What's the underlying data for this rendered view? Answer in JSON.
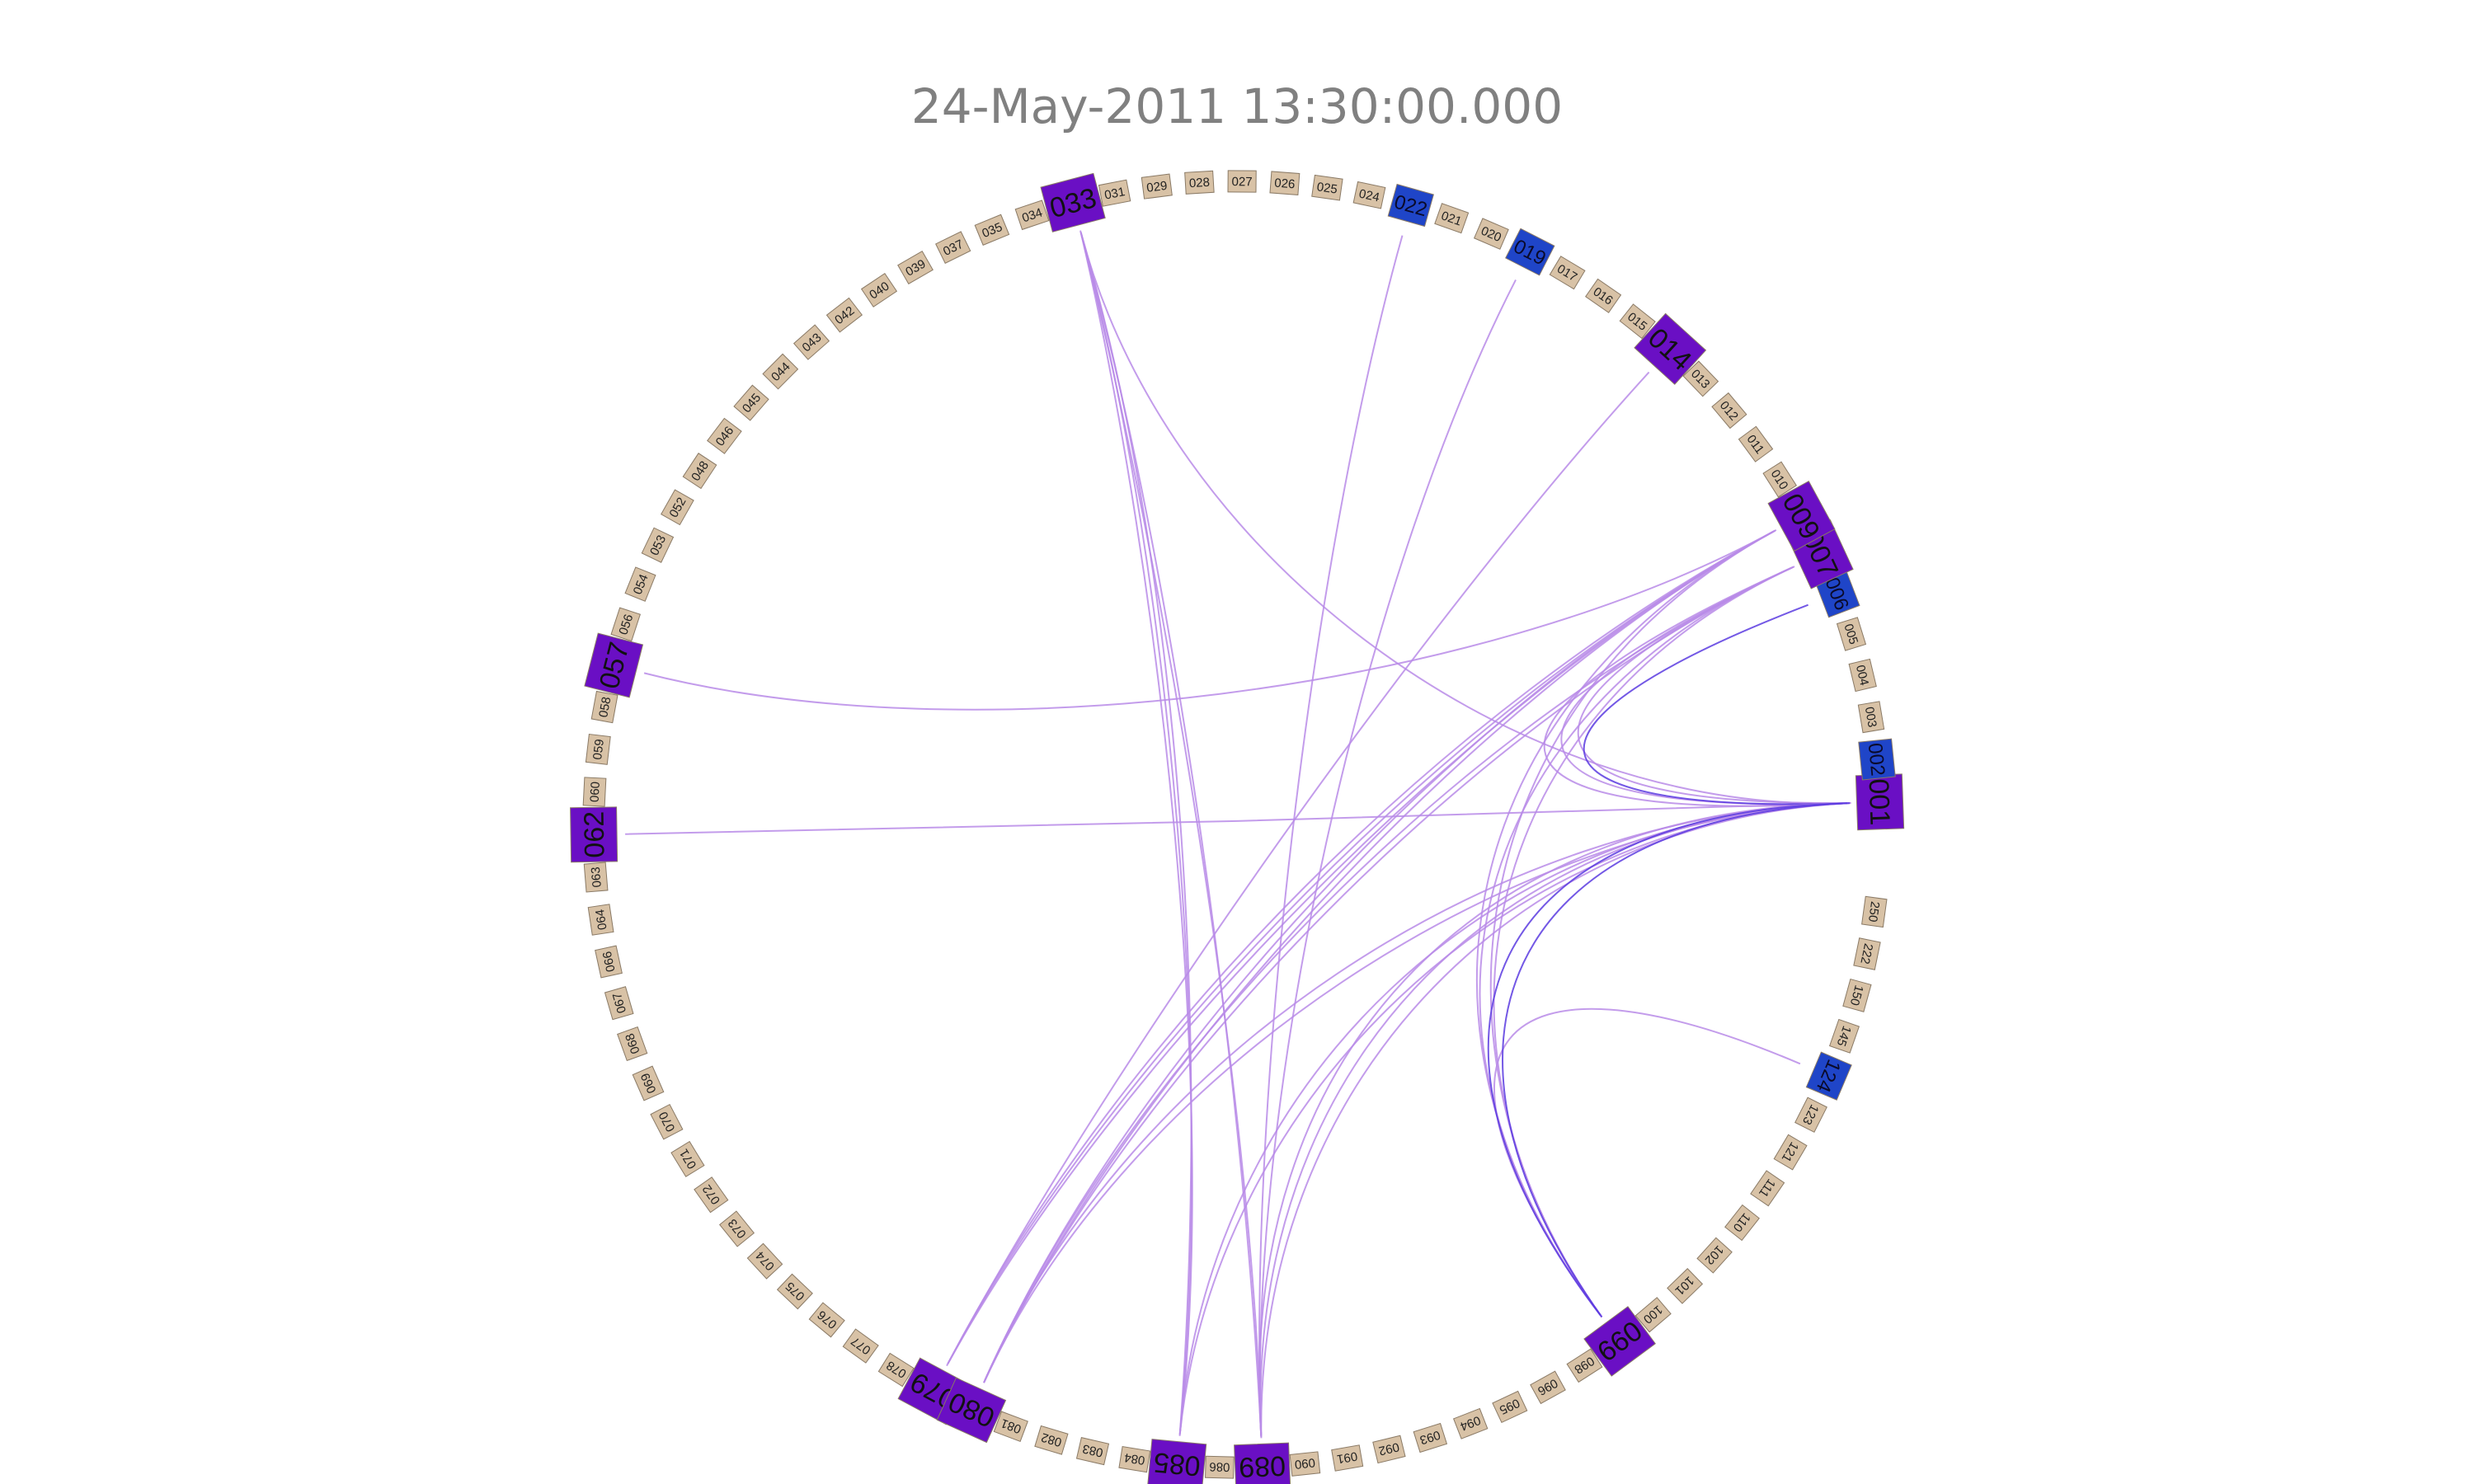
{
  "title": "24-May-2011 13:30:00.000",
  "colors": {
    "small_node_fill": "#d8c2a6",
    "blue_node_fill": "#1f45c8",
    "purple_node_fill": "#6a0fc4",
    "violet_node_fill": "#7d1ac0",
    "edge_light": "#b98be8",
    "edge_dark": "#5b3be0"
  },
  "nodes": [
    {
      "label": "001",
      "kind": "big"
    },
    {
      "label": "002",
      "kind": "blue"
    },
    {
      "label": "003",
      "kind": "small"
    },
    {
      "label": "004",
      "kind": "small"
    },
    {
      "label": "005",
      "kind": "small"
    },
    {
      "label": "006",
      "kind": "blue"
    },
    {
      "label": "007",
      "kind": "big"
    },
    {
      "label": "009",
      "kind": "big"
    },
    {
      "label": "010",
      "kind": "small"
    },
    {
      "label": "011",
      "kind": "small"
    },
    {
      "label": "012",
      "kind": "small"
    },
    {
      "label": "013",
      "kind": "small"
    },
    {
      "label": "014",
      "kind": "big"
    },
    {
      "label": "015",
      "kind": "small"
    },
    {
      "label": "016",
      "kind": "small"
    },
    {
      "label": "017",
      "kind": "small"
    },
    {
      "label": "019",
      "kind": "blue"
    },
    {
      "label": "020",
      "kind": "small"
    },
    {
      "label": "021",
      "kind": "small"
    },
    {
      "label": "022",
      "kind": "blue"
    },
    {
      "label": "024",
      "kind": "small"
    },
    {
      "label": "025",
      "kind": "small"
    },
    {
      "label": "026",
      "kind": "small"
    },
    {
      "label": "027",
      "kind": "small"
    },
    {
      "label": "028",
      "kind": "small"
    },
    {
      "label": "029",
      "kind": "small"
    },
    {
      "label": "031",
      "kind": "small"
    },
    {
      "label": "033",
      "kind": "big"
    },
    {
      "label": "034",
      "kind": "small"
    },
    {
      "label": "035",
      "kind": "small"
    },
    {
      "label": "037",
      "kind": "small"
    },
    {
      "label": "039",
      "kind": "small"
    },
    {
      "label": "040",
      "kind": "small"
    },
    {
      "label": "042",
      "kind": "small"
    },
    {
      "label": "043",
      "kind": "small"
    },
    {
      "label": "044",
      "kind": "small"
    },
    {
      "label": "045",
      "kind": "small"
    },
    {
      "label": "046",
      "kind": "small"
    },
    {
      "label": "048",
      "kind": "small"
    },
    {
      "label": "052",
      "kind": "small"
    },
    {
      "label": "053",
      "kind": "small"
    },
    {
      "label": "054",
      "kind": "small"
    },
    {
      "label": "056",
      "kind": "small"
    },
    {
      "label": "057",
      "kind": "big"
    },
    {
      "label": "058",
      "kind": "small"
    },
    {
      "label": "059",
      "kind": "small"
    },
    {
      "label": "060",
      "kind": "small"
    },
    {
      "label": "062",
      "kind": "big"
    },
    {
      "label": "063",
      "kind": "small"
    },
    {
      "label": "064",
      "kind": "small"
    },
    {
      "label": "066",
      "kind": "small"
    },
    {
      "label": "067",
      "kind": "small"
    },
    {
      "label": "068",
      "kind": "small"
    },
    {
      "label": "069",
      "kind": "small"
    },
    {
      "label": "070",
      "kind": "small"
    },
    {
      "label": "071",
      "kind": "small"
    },
    {
      "label": "072",
      "kind": "small"
    },
    {
      "label": "073",
      "kind": "small"
    },
    {
      "label": "074",
      "kind": "small"
    },
    {
      "label": "075",
      "kind": "small"
    },
    {
      "label": "076",
      "kind": "small"
    },
    {
      "label": "077",
      "kind": "small"
    },
    {
      "label": "078",
      "kind": "small"
    },
    {
      "label": "079",
      "kind": "big"
    },
    {
      "label": "080",
      "kind": "big"
    },
    {
      "label": "081",
      "kind": "small"
    },
    {
      "label": "082",
      "kind": "small"
    },
    {
      "label": "083",
      "kind": "small"
    },
    {
      "label": "084",
      "kind": "small"
    },
    {
      "label": "085",
      "kind": "big"
    },
    {
      "label": "086",
      "kind": "small"
    },
    {
      "label": "089",
      "kind": "big"
    },
    {
      "label": "090",
      "kind": "small"
    },
    {
      "label": "091",
      "kind": "small"
    },
    {
      "label": "092",
      "kind": "small"
    },
    {
      "label": "093",
      "kind": "small"
    },
    {
      "label": "094",
      "kind": "small"
    },
    {
      "label": "095",
      "kind": "small"
    },
    {
      "label": "096",
      "kind": "small"
    },
    {
      "label": "098",
      "kind": "small"
    },
    {
      "label": "099",
      "kind": "big"
    },
    {
      "label": "100",
      "kind": "small"
    },
    {
      "label": "101",
      "kind": "small"
    },
    {
      "label": "102",
      "kind": "small"
    },
    {
      "label": "110",
      "kind": "small"
    },
    {
      "label": "111",
      "kind": "small"
    },
    {
      "label": "121",
      "kind": "small"
    },
    {
      "label": "123",
      "kind": "small"
    },
    {
      "label": "124",
      "kind": "blue"
    },
    {
      "label": "145",
      "kind": "small"
    },
    {
      "label": "150",
      "kind": "small"
    },
    {
      "label": "222",
      "kind": "small"
    },
    {
      "label": "250",
      "kind": "small"
    }
  ],
  "edges": [
    {
      "from": "033",
      "to": "085",
      "count": 3
    },
    {
      "from": "033",
      "to": "089",
      "count": 2
    },
    {
      "from": "033",
      "to": "001",
      "count": 1
    },
    {
      "from": "057",
      "to": "009",
      "count": 1
    },
    {
      "from": "062",
      "to": "001",
      "count": 1
    },
    {
      "from": "022",
      "to": "089",
      "count": 1
    },
    {
      "from": "019",
      "to": "089",
      "count": 1
    },
    {
      "from": "014",
      "to": "079",
      "count": 1
    },
    {
      "from": "009",
      "to": "079",
      "count": 3
    },
    {
      "from": "009",
      "to": "080",
      "count": 2
    },
    {
      "from": "007",
      "to": "080",
      "count": 2
    },
    {
      "from": "007",
      "to": "001",
      "count": 3
    },
    {
      "from": "006",
      "to": "001",
      "count": 1
    },
    {
      "from": "009",
      "to": "099",
      "count": 2
    },
    {
      "from": "007",
      "to": "099",
      "count": 2
    },
    {
      "from": "001",
      "to": "085",
      "count": 2
    },
    {
      "from": "001",
      "to": "089",
      "count": 3
    },
    {
      "from": "001",
      "to": "080",
      "count": 2
    },
    {
      "from": "124",
      "to": "099",
      "count": 1
    },
    {
      "from": "001",
      "to": "099",
      "count": 2
    }
  ]
}
